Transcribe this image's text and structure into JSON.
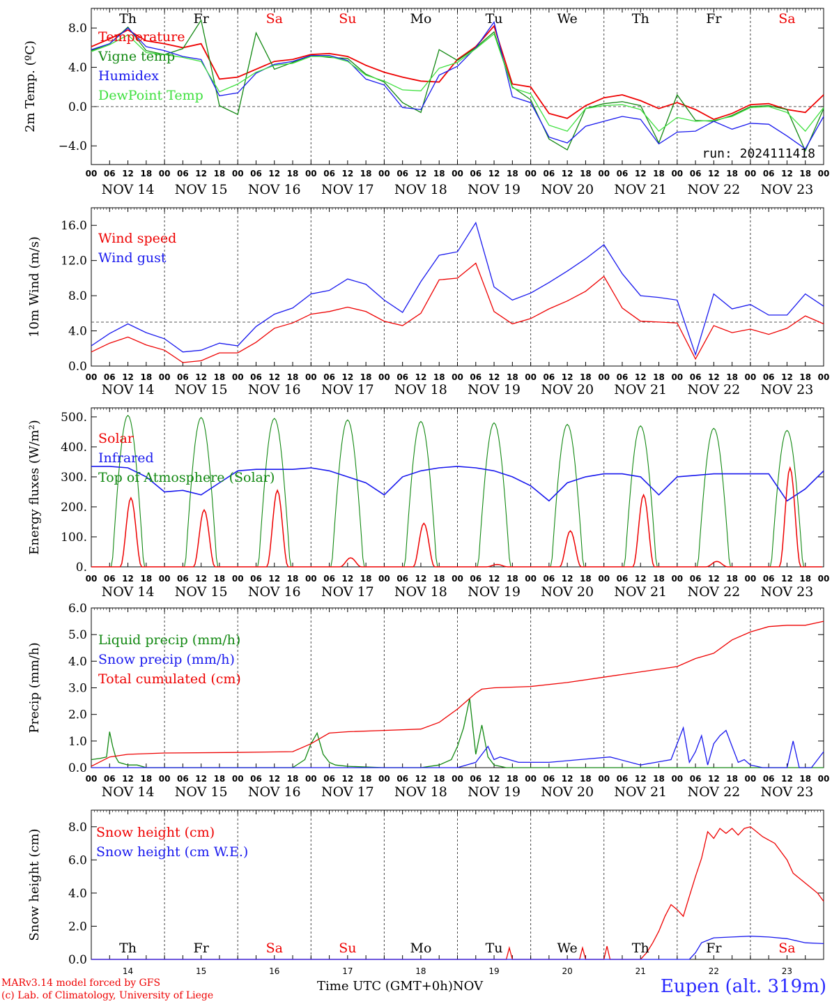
{
  "chart_data": [
    {
      "type": "line",
      "ylabel": "2m Temp. (ºC)",
      "ylim": [
        -5.9,
        10.0
      ],
      "ytick_labels": [
        "8.0",
        "4.0",
        "0.0",
        "−4.0"
      ],
      "ytick_values": [
        8,
        4,
        0,
        -4
      ],
      "reference_line": 0,
      "day_labels": [
        "Th",
        "Fr",
        "Sa",
        "Su",
        "Mo",
        "Tu",
        "We",
        "Th",
        "Fr",
        "Sa"
      ],
      "day_label_colors": [
        "#000000",
        "#000000",
        "#ee0000",
        "#ee0000",
        "#000000",
        "#000000",
        "#000000",
        "#000000",
        "#000000",
        "#ee0000"
      ],
      "annotation": "run: 2024111418",
      "x_hours": [
        0,
        6,
        12,
        18,
        24,
        30,
        36,
        42,
        48,
        54,
        60,
        66,
        72,
        78,
        84,
        90,
        96,
        102,
        108,
        114,
        120,
        126,
        132,
        138,
        144,
        150,
        156,
        162,
        168,
        174,
        180,
        186,
        192,
        198,
        204,
        210,
        216,
        222,
        228,
        234,
        240
      ],
      "series": [
        {
          "name": "Temperature",
          "color": "#ee0000",
          "values": [
            6.1,
            6.9,
            7.8,
            6.7,
            6.4,
            6.0,
            6.4,
            2.8,
            3.0,
            3.8,
            4.6,
            4.8,
            5.3,
            5.4,
            5.1,
            4.2,
            3.5,
            3.0,
            2.6,
            2.5,
            4.8,
            6.1,
            8.2,
            2.3,
            2.0,
            -0.7,
            -1.2,
            0.1,
            0.9,
            1.2,
            0.6,
            -0.2,
            0.4,
            -0.3,
            -1.3,
            -0.7,
            0.2,
            0.3,
            -0.3,
            -0.6,
            1.2
          ]
        },
        {
          "name": "Vigne temp",
          "color": "#118811",
          "values": [
            5.7,
            6.4,
            8.1,
            5.7,
            5.3,
            5.9,
            8.8,
            0.1,
            -0.8,
            7.5,
            3.8,
            4.5,
            5.2,
            5.0,
            4.9,
            3.3,
            2.5,
            0.4,
            -0.6,
            5.8,
            4.7,
            6.0,
            7.6,
            2.0,
            0.7,
            -3.3,
            -4.4,
            -0.2,
            0.3,
            0.5,
            0.1,
            -3.7,
            1.2,
            -1.4,
            -1.5,
            -0.9,
            0.0,
            0.1,
            -0.3,
            -4.5,
            -0.2
          ]
        },
        {
          "name": "Humidex",
          "color": "#1818ee",
          "values": [
            5.8,
            6.4,
            8.0,
            6.1,
            5.7,
            5.1,
            4.8,
            1.1,
            1.4,
            3.4,
            4.3,
            4.6,
            5.2,
            5.2,
            4.7,
            2.8,
            2.2,
            -0.1,
            -0.3,
            3.2,
            4.1,
            6.0,
            8.6,
            1.0,
            0.4,
            -3.1,
            -3.7,
            -2.0,
            -1.5,
            -1.0,
            -1.3,
            -3.8,
            -2.6,
            -2.5,
            -1.5,
            -2.3,
            -1.7,
            -1.8,
            -3.0,
            -4.3,
            -1.0
          ]
        },
        {
          "name": "DewPoint Temp",
          "color": "#3ee03e",
          "values": [
            5.6,
            6.3,
            7.3,
            5.5,
            5.3,
            5.0,
            4.6,
            1.5,
            2.3,
            3.5,
            4.2,
            4.4,
            5.1,
            5.1,
            4.6,
            3.2,
            2.6,
            1.7,
            1.6,
            3.9,
            4.5,
            5.9,
            7.4,
            1.9,
            1.3,
            -1.9,
            -2.5,
            -0.2,
            0.1,
            0.2,
            -0.3,
            -2.5,
            -1.1,
            -1.5,
            -1.4,
            -1.0,
            -0.1,
            0.0,
            -0.6,
            -2.5,
            -0.1
          ]
        }
      ],
      "x_tick_labels": [
        "00",
        "06",
        "12",
        "18"
      ],
      "date_labels": [
        "NOV 14",
        "NOV 15",
        "NOV 16",
        "NOV 17",
        "NOV 18",
        "NOV 19",
        "NOV 20",
        "NOV 21",
        "NOV 22",
        "NOV 23"
      ]
    },
    {
      "type": "line",
      "ylabel": "10m Wind (m/s)",
      "ylim": [
        0,
        18
      ],
      "ytick_labels": [
        "16.0",
        "12.0",
        "8.0",
        "4.0",
        "0.0"
      ],
      "ytick_values": [
        16,
        12,
        8,
        4,
        0
      ],
      "reference_line": 5,
      "x_hours": [
        0,
        6,
        12,
        18,
        24,
        30,
        36,
        42,
        48,
        54,
        60,
        66,
        72,
        78,
        84,
        90,
        96,
        102,
        108,
        114,
        120,
        126,
        132,
        138,
        144,
        150,
        156,
        162,
        168,
        174,
        180,
        186,
        192,
        198,
        204,
        210,
        216,
        222,
        228,
        234,
        240
      ],
      "series": [
        {
          "name": "Wind speed",
          "color": "#ee0000",
          "values": [
            1.6,
            2.6,
            3.3,
            2.4,
            1.8,
            0.4,
            0.6,
            1.5,
            1.5,
            2.7,
            4.3,
            4.9,
            5.9,
            6.2,
            6.7,
            6.2,
            5.1,
            4.6,
            6.0,
            9.8,
            10.0,
            11.7,
            6.2,
            4.8,
            5.4,
            6.5,
            7.4,
            8.5,
            10.2,
            6.6,
            5.1,
            5.0,
            4.9,
            0.8,
            4.6,
            3.8,
            4.2,
            3.6,
            4.3,
            5.7,
            4.8
          ]
        },
        {
          "name": "Wind gust",
          "color": "#1818ee",
          "values": [
            2.3,
            3.7,
            4.8,
            3.8,
            3.1,
            1.6,
            1.8,
            2.6,
            2.3,
            4.5,
            5.9,
            6.6,
            8.2,
            8.6,
            9.9,
            9.3,
            7.5,
            6.1,
            9.6,
            12.6,
            13.0,
            16.3,
            9.0,
            7.5,
            8.3,
            9.5,
            10.8,
            12.2,
            13.8,
            10.5,
            8.0,
            7.8,
            7.5,
            1.3,
            8.2,
            6.5,
            7.0,
            5.8,
            5.8,
            8.2,
            6.8
          ]
        }
      ]
    },
    {
      "type": "line",
      "ylabel": "Energy fluxes (W/m²)",
      "ylim": [
        0,
        530
      ],
      "ytick_labels": [
        "500.",
        "400.",
        "300.",
        "200.",
        "100.",
        "0."
      ],
      "ytick_values": [
        500,
        400,
        300,
        200,
        100,
        0
      ],
      "solar_peaks": [
        230,
        190,
        255,
        30,
        145,
        8,
        120,
        240,
        18,
        330
      ],
      "toa_peaks": [
        505,
        498,
        495,
        490,
        485,
        480,
        475,
        470,
        462,
        455
      ],
      "infrared_values": [
        335,
        335,
        330,
        300,
        250,
        255,
        240,
        280,
        320,
        325,
        325,
        325,
        330,
        320,
        300,
        280,
        240,
        300,
        320,
        330,
        335,
        330,
        320,
        300,
        270,
        220,
        280,
        300,
        310,
        310,
        300,
        240,
        300,
        305,
        310,
        310,
        310,
        310,
        220,
        260,
        320
      ],
      "series": [
        {
          "name": "Solar",
          "color": "#ee0000"
        },
        {
          "name": "Infrared",
          "color": "#1818ee"
        },
        {
          "name": "Top of Atmosphere (Solar)",
          "color": "#118811"
        }
      ]
    },
    {
      "type": "line",
      "ylabel": "Precip (mm/h)",
      "ylim": [
        0,
        6.0
      ],
      "ytick_labels": [
        "6.0",
        "5.0",
        "4.0",
        "3.0",
        "2.0",
        "1.0",
        "0.0"
      ],
      "ytick_values": [
        6,
        5,
        4,
        3,
        2,
        1,
        0
      ],
      "series": [
        {
          "name": "Liquid precip (mm/h)",
          "color": "#118811",
          "x_hours": [
            0,
            3,
            5,
            6,
            7,
            8,
            9,
            12,
            15,
            18,
            24,
            30,
            48,
            66,
            70,
            72,
            74,
            76,
            78,
            80,
            84,
            96,
            108,
            114,
            118,
            120,
            122,
            124,
            126,
            128,
            130,
            132,
            134,
            136,
            140,
            150,
            168,
            240
          ],
          "values": [
            0.3,
            0.35,
            0.4,
            1.35,
            0.8,
            0.4,
            0.2,
            0.1,
            0.1,
            0,
            0,
            0,
            0,
            0,
            0.3,
            0.9,
            1.3,
            0.5,
            0.2,
            0.1,
            0.05,
            0,
            0,
            0.1,
            0.3,
            0.8,
            1.5,
            2.6,
            0.5,
            1.6,
            0.4,
            0.1,
            0.05,
            0,
            0,
            0,
            0,
            0
          ]
        },
        {
          "name": "Snow precip (mm/h)",
          "color": "#1818ee",
          "x_hours": [
            0,
            120,
            126,
            130,
            132,
            134,
            140,
            150,
            160,
            170,
            180,
            185,
            190,
            194,
            196,
            198,
            200,
            202,
            204,
            206,
            208,
            210,
            212,
            214,
            216,
            220,
            228,
            230,
            232,
            236,
            240
          ],
          "values": [
            0,
            0,
            0.2,
            0.8,
            0.3,
            0.4,
            0.2,
            0.2,
            0.3,
            0.4,
            0.1,
            0.2,
            0.3,
            1.5,
            0.2,
            0.6,
            1.2,
            0.1,
            0.9,
            1.2,
            1.4,
            0.8,
            0.2,
            0.3,
            0.1,
            0,
            0,
            1.0,
            0,
            0,
            0.6
          ]
        },
        {
          "name": "Total cumulated (cm)",
          "color": "#ee0000",
          "x_hours": [
            0,
            6,
            12,
            24,
            48,
            66,
            72,
            78,
            84,
            96,
            108,
            114,
            120,
            126,
            128,
            132,
            144,
            156,
            168,
            180,
            192,
            198,
            204,
            210,
            216,
            222,
            228,
            234,
            240
          ],
          "values": [
            0.05,
            0.4,
            0.5,
            0.55,
            0.57,
            0.6,
            0.9,
            1.3,
            1.35,
            1.4,
            1.45,
            1.7,
            2.2,
            2.8,
            2.95,
            3.0,
            3.05,
            3.2,
            3.4,
            3.6,
            3.8,
            4.1,
            4.3,
            4.8,
            5.1,
            5.3,
            5.35,
            5.35,
            5.5
          ]
        }
      ]
    },
    {
      "type": "line",
      "ylabel": "Snow height (cm)",
      "ylim": [
        0,
        9.0
      ],
      "ytick_labels": [
        "8.0",
        "6.0",
        "4.0",
        "2.0",
        "0.0"
      ],
      "ytick_values": [
        8,
        6,
        4,
        2,
        0
      ],
      "day_labels": [
        "Th",
        "Fr",
        "Sa",
        "Su",
        "Mo",
        "Tu",
        "We",
        "Th",
        "Fr",
        "Sa"
      ],
      "day_label_colors": [
        "#000000",
        "#000000",
        "#ee0000",
        "#ee0000",
        "#000000",
        "#000000",
        "#000000",
        "#000000",
        "#000000",
        "#ee0000"
      ],
      "bottom_labels": [
        "14",
        "15",
        "16",
        "17",
        "18",
        "19",
        "20",
        "21",
        "22",
        "23"
      ],
      "series": [
        {
          "name": "Snow height (cm)",
          "color": "#ee0000",
          "x_hours": [
            0,
            136,
            137,
            138,
            139,
            160,
            161,
            162,
            168,
            169,
            170,
            180,
            181,
            182,
            184,
            186,
            188,
            190,
            192,
            194,
            196,
            198,
            200,
            202,
            204,
            206,
            208,
            210,
            212,
            214,
            216,
            218,
            220,
            222,
            224,
            228,
            230,
            234,
            238,
            240
          ],
          "values": [
            0,
            0,
            0.7,
            0,
            0,
            0,
            0.7,
            0,
            0,
            0.8,
            0,
            0,
            0.2,
            0.4,
            1.0,
            1.7,
            2.6,
            3.3,
            3.0,
            2.6,
            3.8,
            5.0,
            6.1,
            7.7,
            7.3,
            7.9,
            7.6,
            7.9,
            7.5,
            7.9,
            8.0,
            7.7,
            7.4,
            7.2,
            7.0,
            6.0,
            5.2,
            4.6,
            4.0,
            3.5
          ]
        },
        {
          "name": "Snow height (cm W.E.)",
          "color": "#1818ee",
          "x_hours": [
            0,
            196,
            198,
            200,
            204,
            210,
            216,
            222,
            228,
            234,
            240
          ],
          "values": [
            0,
            0,
            0.4,
            1.0,
            1.3,
            1.35,
            1.4,
            1.35,
            1.25,
            1.0,
            0.95
          ]
        }
      ]
    }
  ],
  "footer": {
    "credit_line1": "MARv3.14 model forced by GFS",
    "credit_line2": "(c) Lab. of Climatology, University of Liege",
    "time_label": "Time UTC (GMT+0h)",
    "month_label": "NOV",
    "station": "Eupen (alt. 319m)"
  }
}
